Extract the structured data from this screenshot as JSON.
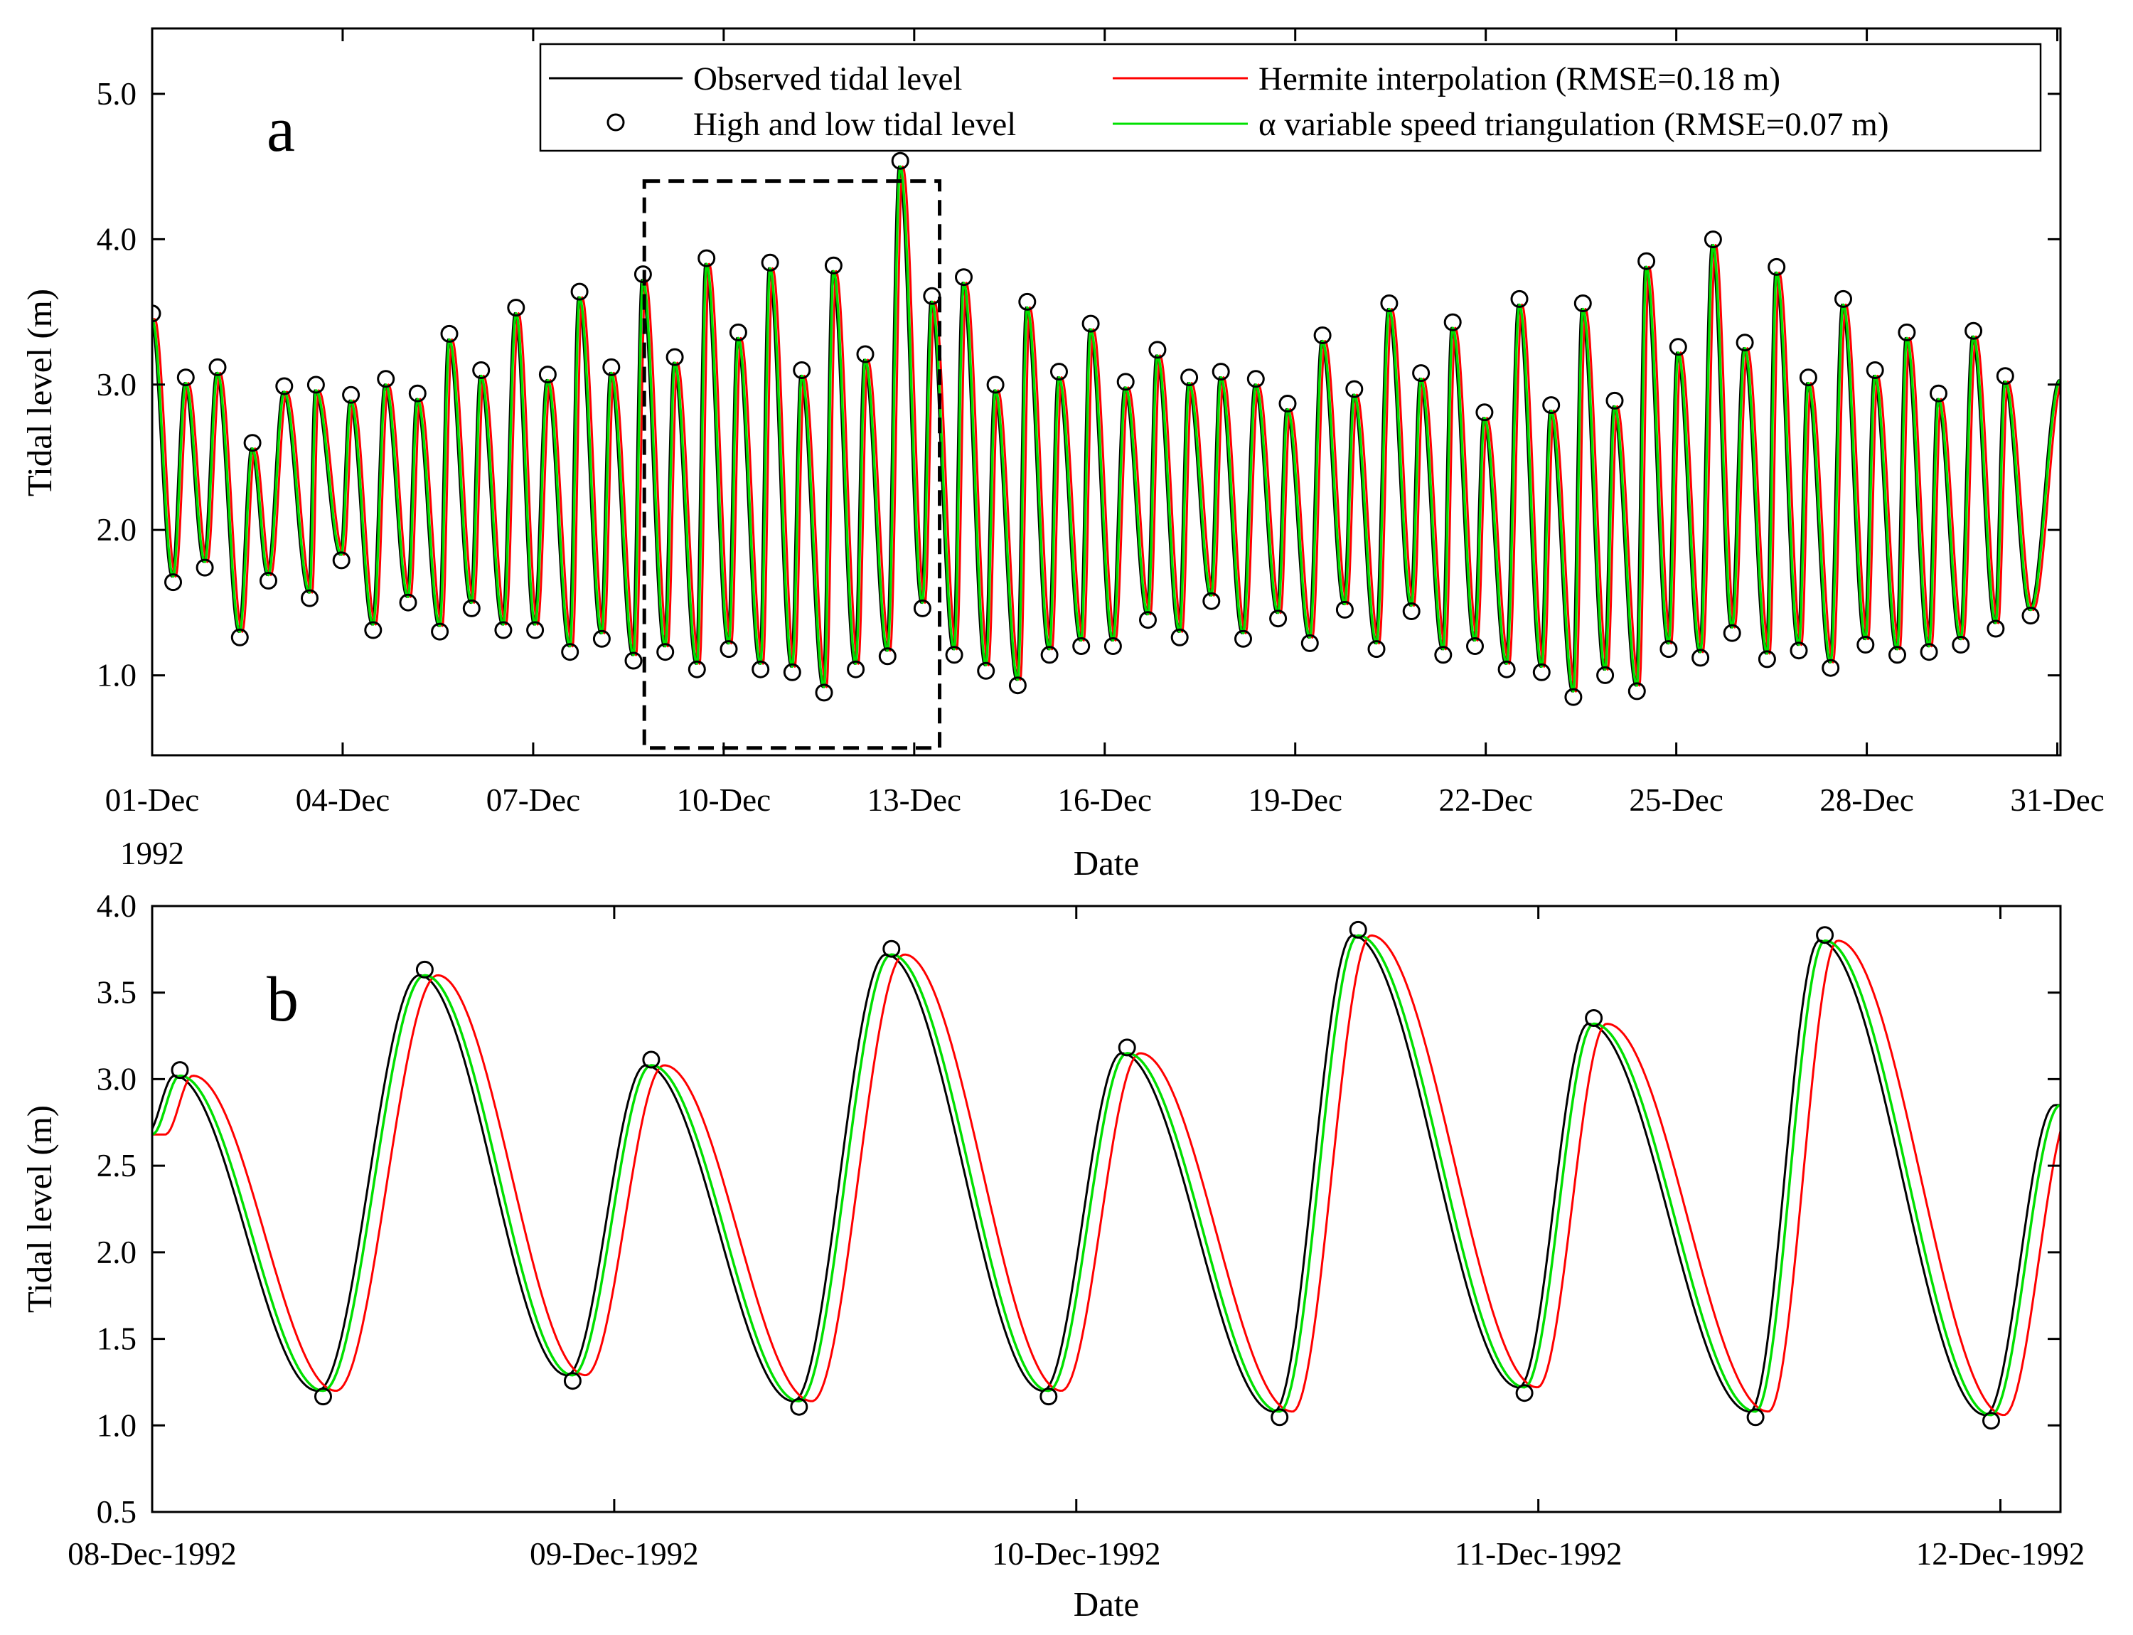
{
  "chart_data": [
    {
      "id": "panel-a",
      "type": "line",
      "panel_label": "a",
      "xlabel": "Date",
      "ylabel": "Tidal level (m)",
      "xlim": [
        0,
        30.05
      ],
      "ylim": [
        0.45,
        5.45
      ],
      "x_tick_values": [
        0,
        3,
        6,
        9,
        12,
        15,
        18,
        21,
        24,
        27,
        30
      ],
      "x_tick_labels": [
        "01-Dec",
        "04-Dec",
        "07-Dec",
        "10-Dec",
        "13-Dec",
        "16-Dec",
        "19-Dec",
        "22-Dec",
        "25-Dec",
        "28-Dec",
        "31-Dec"
      ],
      "x_tick_sublabel": "1992",
      "y_tick_values": [
        1.0,
        2.0,
        3.0,
        4.0,
        5.0
      ],
      "y_tick_labels": [
        "1.0",
        "2.0",
        "3.0",
        "4.0",
        "5.0"
      ],
      "zoom_box": {
        "x_range": [
          7.75,
          12.4
        ],
        "y_range": [
          0.5,
          4.4
        ]
      },
      "legend": {
        "placement": "top-right",
        "entries": [
          {
            "label": "Observed tidal level",
            "color": "#000000",
            "style": "line"
          },
          {
            "label": "Hermite interpolation (RMSE=0.18 m)",
            "color": "#ff0000",
            "style": "line"
          },
          {
            "label": "High and low tidal level",
            "color": "#000000",
            "style": "marker"
          },
          {
            "label": "α variable speed triangulation (RMSE=0.07 m)",
            "color": "#00e000",
            "style": "line"
          }
        ]
      },
      "extremes": [
        [
          0.0,
          3.45
        ],
        [
          0.33,
          1.68
        ],
        [
          0.53,
          3.01
        ],
        [
          0.83,
          1.78
        ],
        [
          1.03,
          3.08
        ],
        [
          1.38,
          1.3
        ],
        [
          1.58,
          2.56
        ],
        [
          1.83,
          1.69
        ],
        [
          2.08,
          2.95
        ],
        [
          2.48,
          1.57
        ],
        [
          2.58,
          2.96
        ],
        [
          2.98,
          1.83
        ],
        [
          3.13,
          2.89
        ],
        [
          3.48,
          1.35
        ],
        [
          3.68,
          3.0
        ],
        [
          4.03,
          1.54
        ],
        [
          4.18,
          2.9
        ],
        [
          4.53,
          1.34
        ],
        [
          4.68,
          3.31
        ],
        [
          5.03,
          1.5
        ],
        [
          5.18,
          3.06
        ],
        [
          5.53,
          1.35
        ],
        [
          5.73,
          3.49
        ],
        [
          6.03,
          1.35
        ],
        [
          6.23,
          3.03
        ],
        [
          6.58,
          1.2
        ],
        [
          6.73,
          3.6
        ],
        [
          7.08,
          1.29
        ],
        [
          7.23,
          3.08
        ],
        [
          7.58,
          1.14
        ],
        [
          7.73,
          3.72
        ],
        [
          8.08,
          1.2
        ],
        [
          8.23,
          3.15
        ],
        [
          8.58,
          1.08
        ],
        [
          8.73,
          3.83
        ],
        [
          9.08,
          1.22
        ],
        [
          9.23,
          3.32
        ],
        [
          9.58,
          1.08
        ],
        [
          9.73,
          3.8
        ],
        [
          10.08,
          1.06
        ],
        [
          10.23,
          3.06
        ],
        [
          10.58,
          0.92
        ],
        [
          10.73,
          3.78
        ],
        [
          11.08,
          1.08
        ],
        [
          11.23,
          3.17
        ],
        [
          11.58,
          1.17
        ],
        [
          11.78,
          4.5
        ],
        [
          12.13,
          1.5
        ],
        [
          12.28,
          3.57
        ],
        [
          12.63,
          1.18
        ],
        [
          12.78,
          3.7
        ],
        [
          13.13,
          1.07
        ],
        [
          13.28,
          2.96
        ],
        [
          13.63,
          0.97
        ],
        [
          13.78,
          3.53
        ],
        [
          14.13,
          1.18
        ],
        [
          14.28,
          3.05
        ],
        [
          14.63,
          1.24
        ],
        [
          14.78,
          3.38
        ],
        [
          15.13,
          1.24
        ],
        [
          15.33,
          2.98
        ],
        [
          15.68,
          1.42
        ],
        [
          15.83,
          3.2
        ],
        [
          16.18,
          1.3
        ],
        [
          16.33,
          3.01
        ],
        [
          16.68,
          1.55
        ],
        [
          16.83,
          3.05
        ],
        [
          17.18,
          1.29
        ],
        [
          17.38,
          3.0
        ],
        [
          17.73,
          1.43
        ],
        [
          17.88,
          2.83
        ],
        [
          18.23,
          1.26
        ],
        [
          18.43,
          3.3
        ],
        [
          18.78,
          1.49
        ],
        [
          18.93,
          2.93
        ],
        [
          19.28,
          1.22
        ],
        [
          19.48,
          3.52
        ],
        [
          19.83,
          1.48
        ],
        [
          19.98,
          3.04
        ],
        [
          20.33,
          1.18
        ],
        [
          20.48,
          3.39
        ],
        [
          20.83,
          1.24
        ],
        [
          20.98,
          2.77
        ],
        [
          21.33,
          1.08
        ],
        [
          21.53,
          3.55
        ],
        [
          21.88,
          1.06
        ],
        [
          22.03,
          2.82
        ],
        [
          22.38,
          0.89
        ],
        [
          22.53,
          3.52
        ],
        [
          22.88,
          1.04
        ],
        [
          23.03,
          2.85
        ],
        [
          23.38,
          0.93
        ],
        [
          23.53,
          3.81
        ],
        [
          23.88,
          1.22
        ],
        [
          24.03,
          3.22
        ],
        [
          24.38,
          1.16
        ],
        [
          24.58,
          3.96
        ],
        [
          24.88,
          1.33
        ],
        [
          25.08,
          3.25
        ],
        [
          25.43,
          1.15
        ],
        [
          25.58,
          3.77
        ],
        [
          25.93,
          1.21
        ],
        [
          26.08,
          3.01
        ],
        [
          26.43,
          1.09
        ],
        [
          26.63,
          3.55
        ],
        [
          26.98,
          1.25
        ],
        [
          27.13,
          3.06
        ],
        [
          27.48,
          1.18
        ],
        [
          27.63,
          3.32
        ],
        [
          27.98,
          1.2
        ],
        [
          28.13,
          2.9
        ],
        [
          28.48,
          1.25
        ],
        [
          28.68,
          3.33
        ],
        [
          29.03,
          1.36
        ],
        [
          29.18,
          3.02
        ],
        [
          29.58,
          1.45
        ],
        [
          30.05,
          3.03
        ]
      ],
      "series_offsets": {
        "Observed tidal level": -0.02,
        "Hermite interpolation (RMSE=0.18 m)": 0.04,
        "α variable speed triangulation (RMSE=0.07 m)": 0.0
      }
    },
    {
      "id": "panel-b",
      "type": "line",
      "panel_label": "b",
      "xlabel": "Date",
      "ylabel": "Tidal level (m)",
      "xlim": [
        0,
        4.13
      ],
      "ylim": [
        0.5,
        4.0
      ],
      "x_tick_values": [
        0,
        1,
        2,
        3,
        4
      ],
      "x_tick_labels": [
        "08-Dec-1992",
        "09-Dec-1992",
        "10-Dec-1992",
        "11-Dec-1992",
        "12-Dec-1992"
      ],
      "y_tick_values": [
        0.5,
        1.0,
        1.5,
        2.0,
        2.5,
        3.0,
        3.5,
        4.0
      ],
      "y_tick_labels": [
        "0.5",
        "1.0",
        "1.5",
        "2.0",
        "2.5",
        "3.0",
        "3.5",
        "4.0"
      ],
      "extremes": [
        [
          0.0,
          2.68
        ],
        [
          0.06,
          3.02
        ],
        [
          0.37,
          1.2
        ],
        [
          0.59,
          3.6
        ],
        [
          0.91,
          1.29
        ],
        [
          1.08,
          3.08
        ],
        [
          1.4,
          1.14
        ],
        [
          1.6,
          3.72
        ],
        [
          1.94,
          1.2
        ],
        [
          2.11,
          3.15
        ],
        [
          2.44,
          1.08
        ],
        [
          2.61,
          3.83
        ],
        [
          2.97,
          1.22
        ],
        [
          3.12,
          3.32
        ],
        [
          3.47,
          1.08
        ],
        [
          3.62,
          3.8
        ],
        [
          3.98,
          1.06
        ],
        [
          4.13,
          2.85
        ]
      ],
      "series_shifts": {
        "Observed tidal level": -0.012,
        "Hermite interpolation (RMSE=0.18 m)": 0.028,
        "α variable speed triangulation (RMSE=0.07 m)": 0.0
      }
    }
  ]
}
